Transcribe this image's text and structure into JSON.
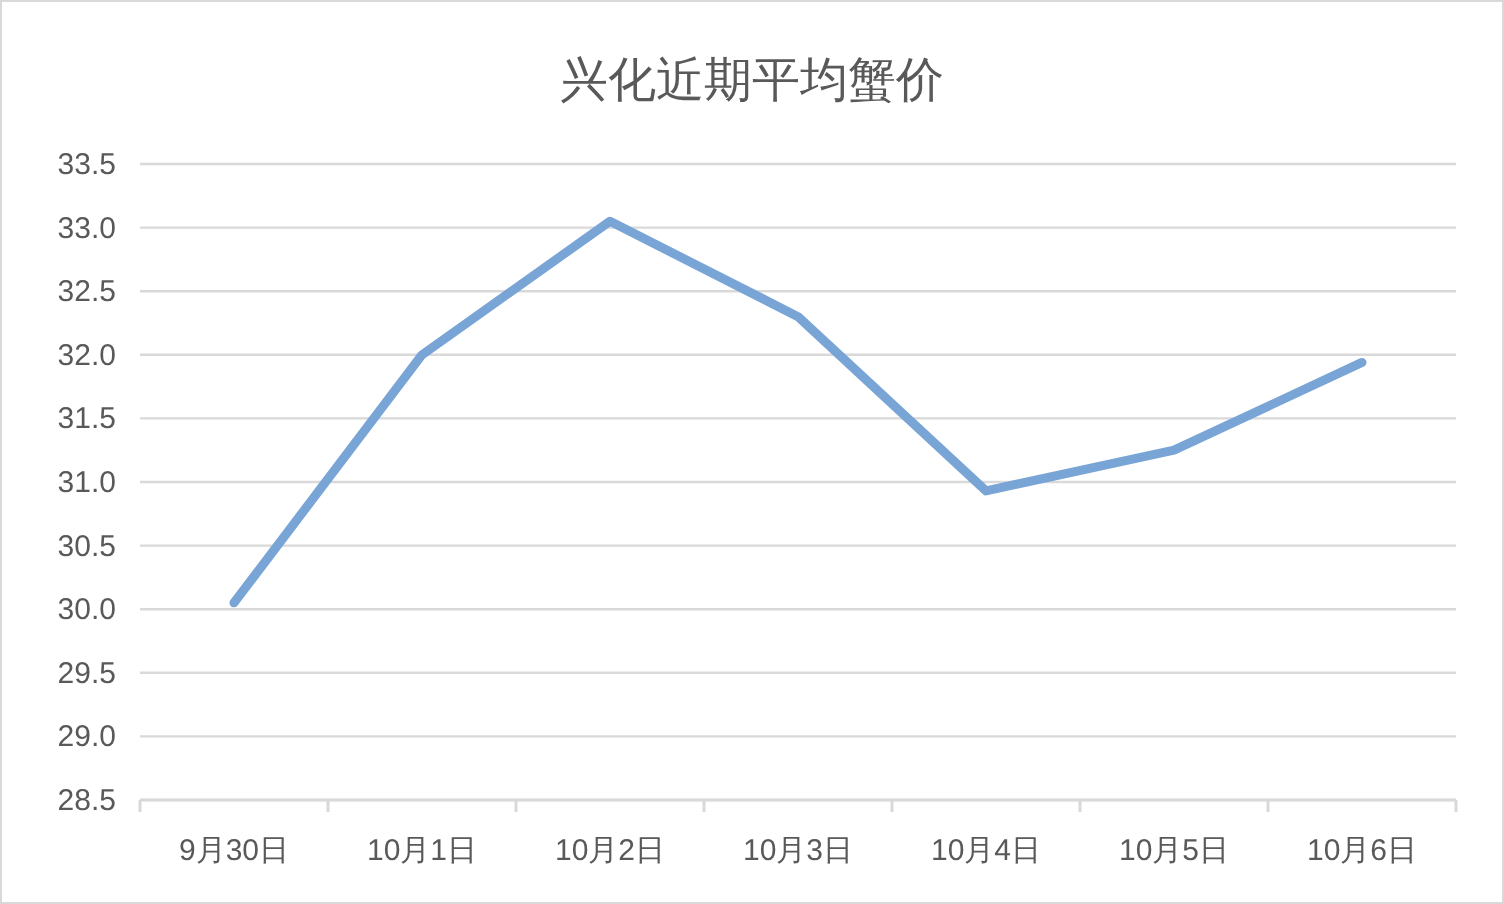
{
  "chart_data": {
    "type": "line",
    "title": "兴化近期平均蟹价",
    "categories": [
      "9月30日",
      "10月1日",
      "10月2日",
      "10月3日",
      "10月4日",
      "10月5日",
      "10月6日"
    ],
    "series": [
      {
        "color": "#78a5d6",
        "values": [
          30.05,
          32.0,
          33.05,
          32.3,
          30.93,
          31.25,
          31.94
        ]
      }
    ],
    "ylim": [
      28.5,
      33.5
    ],
    "yticks": [
      28.5,
      {
        "value": 29,
        "label": "29.0"
      },
      29.5,
      {
        "value": 30,
        "label": "30.0"
      },
      30.5,
      {
        "value": 31,
        "label": "31.0"
      },
      31.5,
      {
        "value": 32,
        "label": "32.0"
      },
      32.5,
      {
        "value": 33,
        "label": "33.0"
      },
      33.5
    ],
    "grid": "y",
    "line_style": "solid"
  }
}
